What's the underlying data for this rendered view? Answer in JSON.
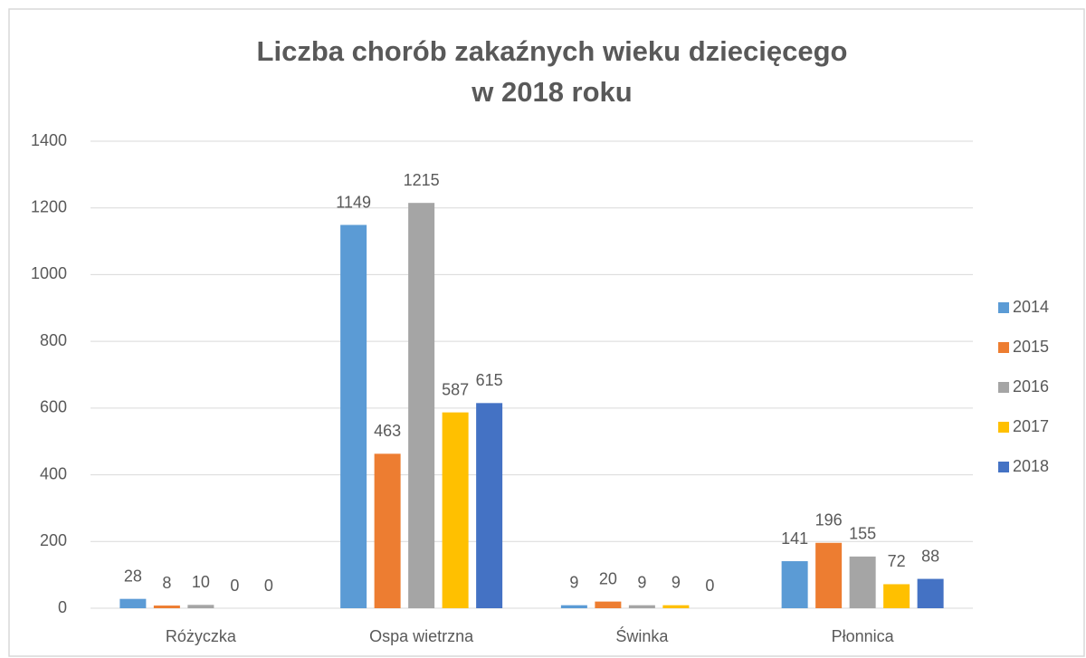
{
  "chart_data": {
    "type": "bar",
    "title": [
      "Liczba chorób zakaźnych wieku dziecięcego",
      "w 2018 roku"
    ],
    "categories": [
      "Różyczka",
      "Ospa wietrzna",
      "Świnka",
      "Płonnica"
    ],
    "series": [
      {
        "name": "2014",
        "color": "#5b9bd5",
        "values": [
          28,
          1149,
          9,
          141
        ]
      },
      {
        "name": "2015",
        "color": "#ed7d31",
        "values": [
          8,
          463,
          20,
          196
        ]
      },
      {
        "name": "2016",
        "color": "#a5a5a5",
        "values": [
          10,
          1215,
          9,
          155
        ]
      },
      {
        "name": "2017",
        "color": "#ffc000",
        "values": [
          0,
          587,
          9,
          72
        ]
      },
      {
        "name": "2018",
        "color": "#4472c4",
        "values": [
          0,
          615,
          0,
          88
        ]
      }
    ],
    "ylim": [
      0,
      1400
    ],
    "yticks": [
      0,
      200,
      400,
      600,
      800,
      1000,
      1200,
      1400
    ],
    "grid": true,
    "legend": "right"
  }
}
